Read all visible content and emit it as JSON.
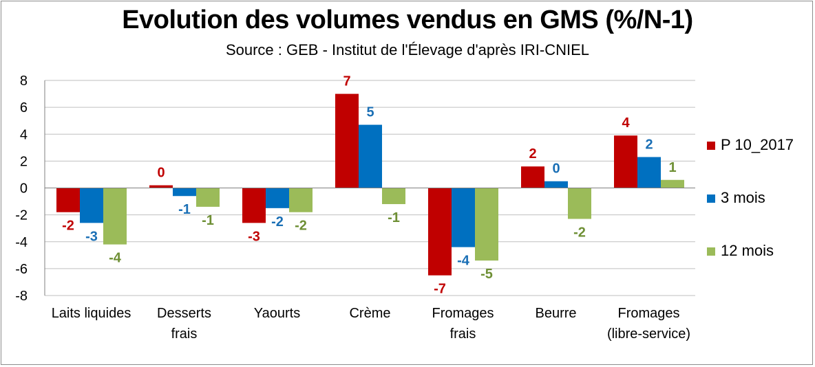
{
  "chart_data": {
    "type": "bar",
    "title": "Evolution des volumes vendus en GMS (%/N-1)",
    "subtitle": "Source : GEB - Institut de l'Élevage d'après  IRI-CNIEL",
    "categories": [
      [
        "Laits liquides"
      ],
      [
        "Desserts",
        "frais"
      ],
      [
        "Yaourts"
      ],
      [
        "Crème"
      ],
      [
        "Fromages",
        "frais"
      ],
      [
        "Beurre"
      ],
      [
        "Fromages",
        "(libre-service)"
      ]
    ],
    "series": [
      {
        "name": "P 10_2017",
        "color": "#c00000",
        "values": [
          -1.8,
          0.2,
          -2.6,
          7.0,
          -6.5,
          1.6,
          3.9
        ],
        "labels": [
          "-2",
          "0",
          "-3",
          "7",
          "-7",
          "2",
          "4"
        ]
      },
      {
        "name": "3 mois",
        "color": "#0070c0",
        "values": [
          -2.6,
          -0.6,
          -1.5,
          4.7,
          -4.4,
          0.5,
          2.3
        ],
        "labels": [
          "-3",
          "-1",
          "-2",
          "5",
          "-4",
          "0",
          "2"
        ]
      },
      {
        "name": "12 mois",
        "color": "#9bbb59",
        "values": [
          -4.2,
          -1.4,
          -1.8,
          -1.2,
          -5.4,
          -2.3,
          0.6
        ],
        "labels": [
          "-4",
          "-1",
          "-2",
          "-1",
          "-5",
          "-2",
          "1"
        ]
      }
    ],
    "label_colors": [
      "#c00000",
      "#1a6fb5",
      "#6e8f34"
    ],
    "ylim": [
      -8,
      8
    ],
    "yticks": [
      8,
      6,
      4,
      2,
      0,
      -2,
      -4,
      -6,
      -8
    ],
    "grid": true,
    "legend_position": "right"
  }
}
